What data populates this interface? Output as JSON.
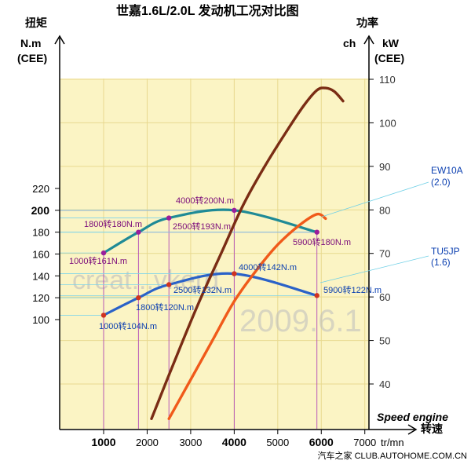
{
  "chart_data": {
    "type": "line",
    "title": "世嘉1.6L/2.0L 发动机工况对比图",
    "left_axis": {
      "title": "扭矩",
      "unit_line1": "N.m",
      "unit_line2": "(CEE)",
      "ticks": [
        {
          "label": "100",
          "value": 100,
          "bold": false
        },
        {
          "label": "120",
          "value": 120,
          "bold": false
        },
        {
          "label": "140",
          "value": 140,
          "bold": false
        },
        {
          "label": "160",
          "value": 160,
          "bold": false
        },
        {
          "label": "180",
          "value": 180,
          "bold": false
        },
        {
          "label": "200",
          "value": 200,
          "bold": true
        },
        {
          "label": "220",
          "value": 220,
          "bold": false
        }
      ]
    },
    "right_axis": {
      "title": "功率",
      "unit_ch": "ch",
      "unit_line1": "kW",
      "unit_line2": "(CEE)",
      "ticks": [
        {
          "label": "40",
          "value": 40
        },
        {
          "label": "50",
          "value": 50
        },
        {
          "label": "60",
          "value": 60
        },
        {
          "label": "70",
          "value": 70
        },
        {
          "label": "80",
          "value": 80
        },
        {
          "label": "90",
          "value": 90
        },
        {
          "label": "100",
          "value": 100
        },
        {
          "label": "110",
          "value": 110
        }
      ]
    },
    "x_axis": {
      "caption": "Speed engine",
      "label": "转速",
      "unit": "tr/mn",
      "ticks": [
        {
          "label": "1000",
          "value": 1000,
          "bold": true
        },
        {
          "label": "2000",
          "value": 2000,
          "bold": false
        },
        {
          "label": "3000",
          "value": 3000,
          "bold": false
        },
        {
          "label": "4000",
          "value": 4000,
          "bold": true
        },
        {
          "label": "5000",
          "value": 5000,
          "bold": false
        },
        {
          "label": "6000",
          "value": 6000,
          "bold": true
        },
        {
          "label": "7000",
          "value": 7000,
          "bold": false
        }
      ]
    },
    "series": [
      {
        "name": "EW10A (2.0)",
        "kind": "torque",
        "color": "#1f8a96",
        "x": [
          1000,
          1800,
          2500,
          4000,
          5900
        ],
        "y": [
          161,
          180,
          193,
          200,
          180
        ],
        "labels": [
          "1000转161N.m",
          "1800转180N.m",
          "2500转193N.m",
          "4000转200N.m",
          "5900转180N.m"
        ]
      },
      {
        "name": "TU5JP (1.6)",
        "kind": "torque",
        "color": "#2a62c8",
        "x": [
          1000,
          1800,
          2500,
          4000,
          5900
        ],
        "y": [
          104,
          120,
          132,
          142,
          122
        ],
        "labels": [
          "1000转104N.m",
          "1800转120N.m",
          "2500转132N.m",
          "4000转142N.m",
          "5900转122N.m"
        ]
      },
      {
        "name": "EW10A (2.0)",
        "kind": "power",
        "color": "#7a2c14",
        "x": [
          2100,
          2700,
          3200,
          3700,
          4200,
          4700,
          5200,
          5600,
          5900,
          6100,
          6300,
          6500
        ],
        "y": [
          32,
          47,
          59,
          70,
          81,
          90,
          98,
          104,
          107.5,
          108,
          107.2,
          105
        ]
      },
      {
        "name": "TU5JP (1.6)",
        "kind": "power",
        "color": "#f05a1a",
        "x": [
          2500,
          3000,
          3500,
          4000,
          4500,
          5000,
          5500,
          5900,
          6100
        ],
        "y": [
          32,
          41,
          50,
          59,
          66,
          72,
          76.5,
          79,
          78
        ]
      }
    ],
    "legend": [
      {
        "name": "EW10A",
        "sub": "(2.0)"
      },
      {
        "name": "TU5JP",
        "sub": "(1.6)"
      }
    ],
    "grid": true,
    "background": "#fbf4c4",
    "watermarks": [
      "creat...vkerd",
      "2009.6.1"
    ],
    "footer": "汽车之家 CLUB.AUTOHOME.COM.CN"
  }
}
